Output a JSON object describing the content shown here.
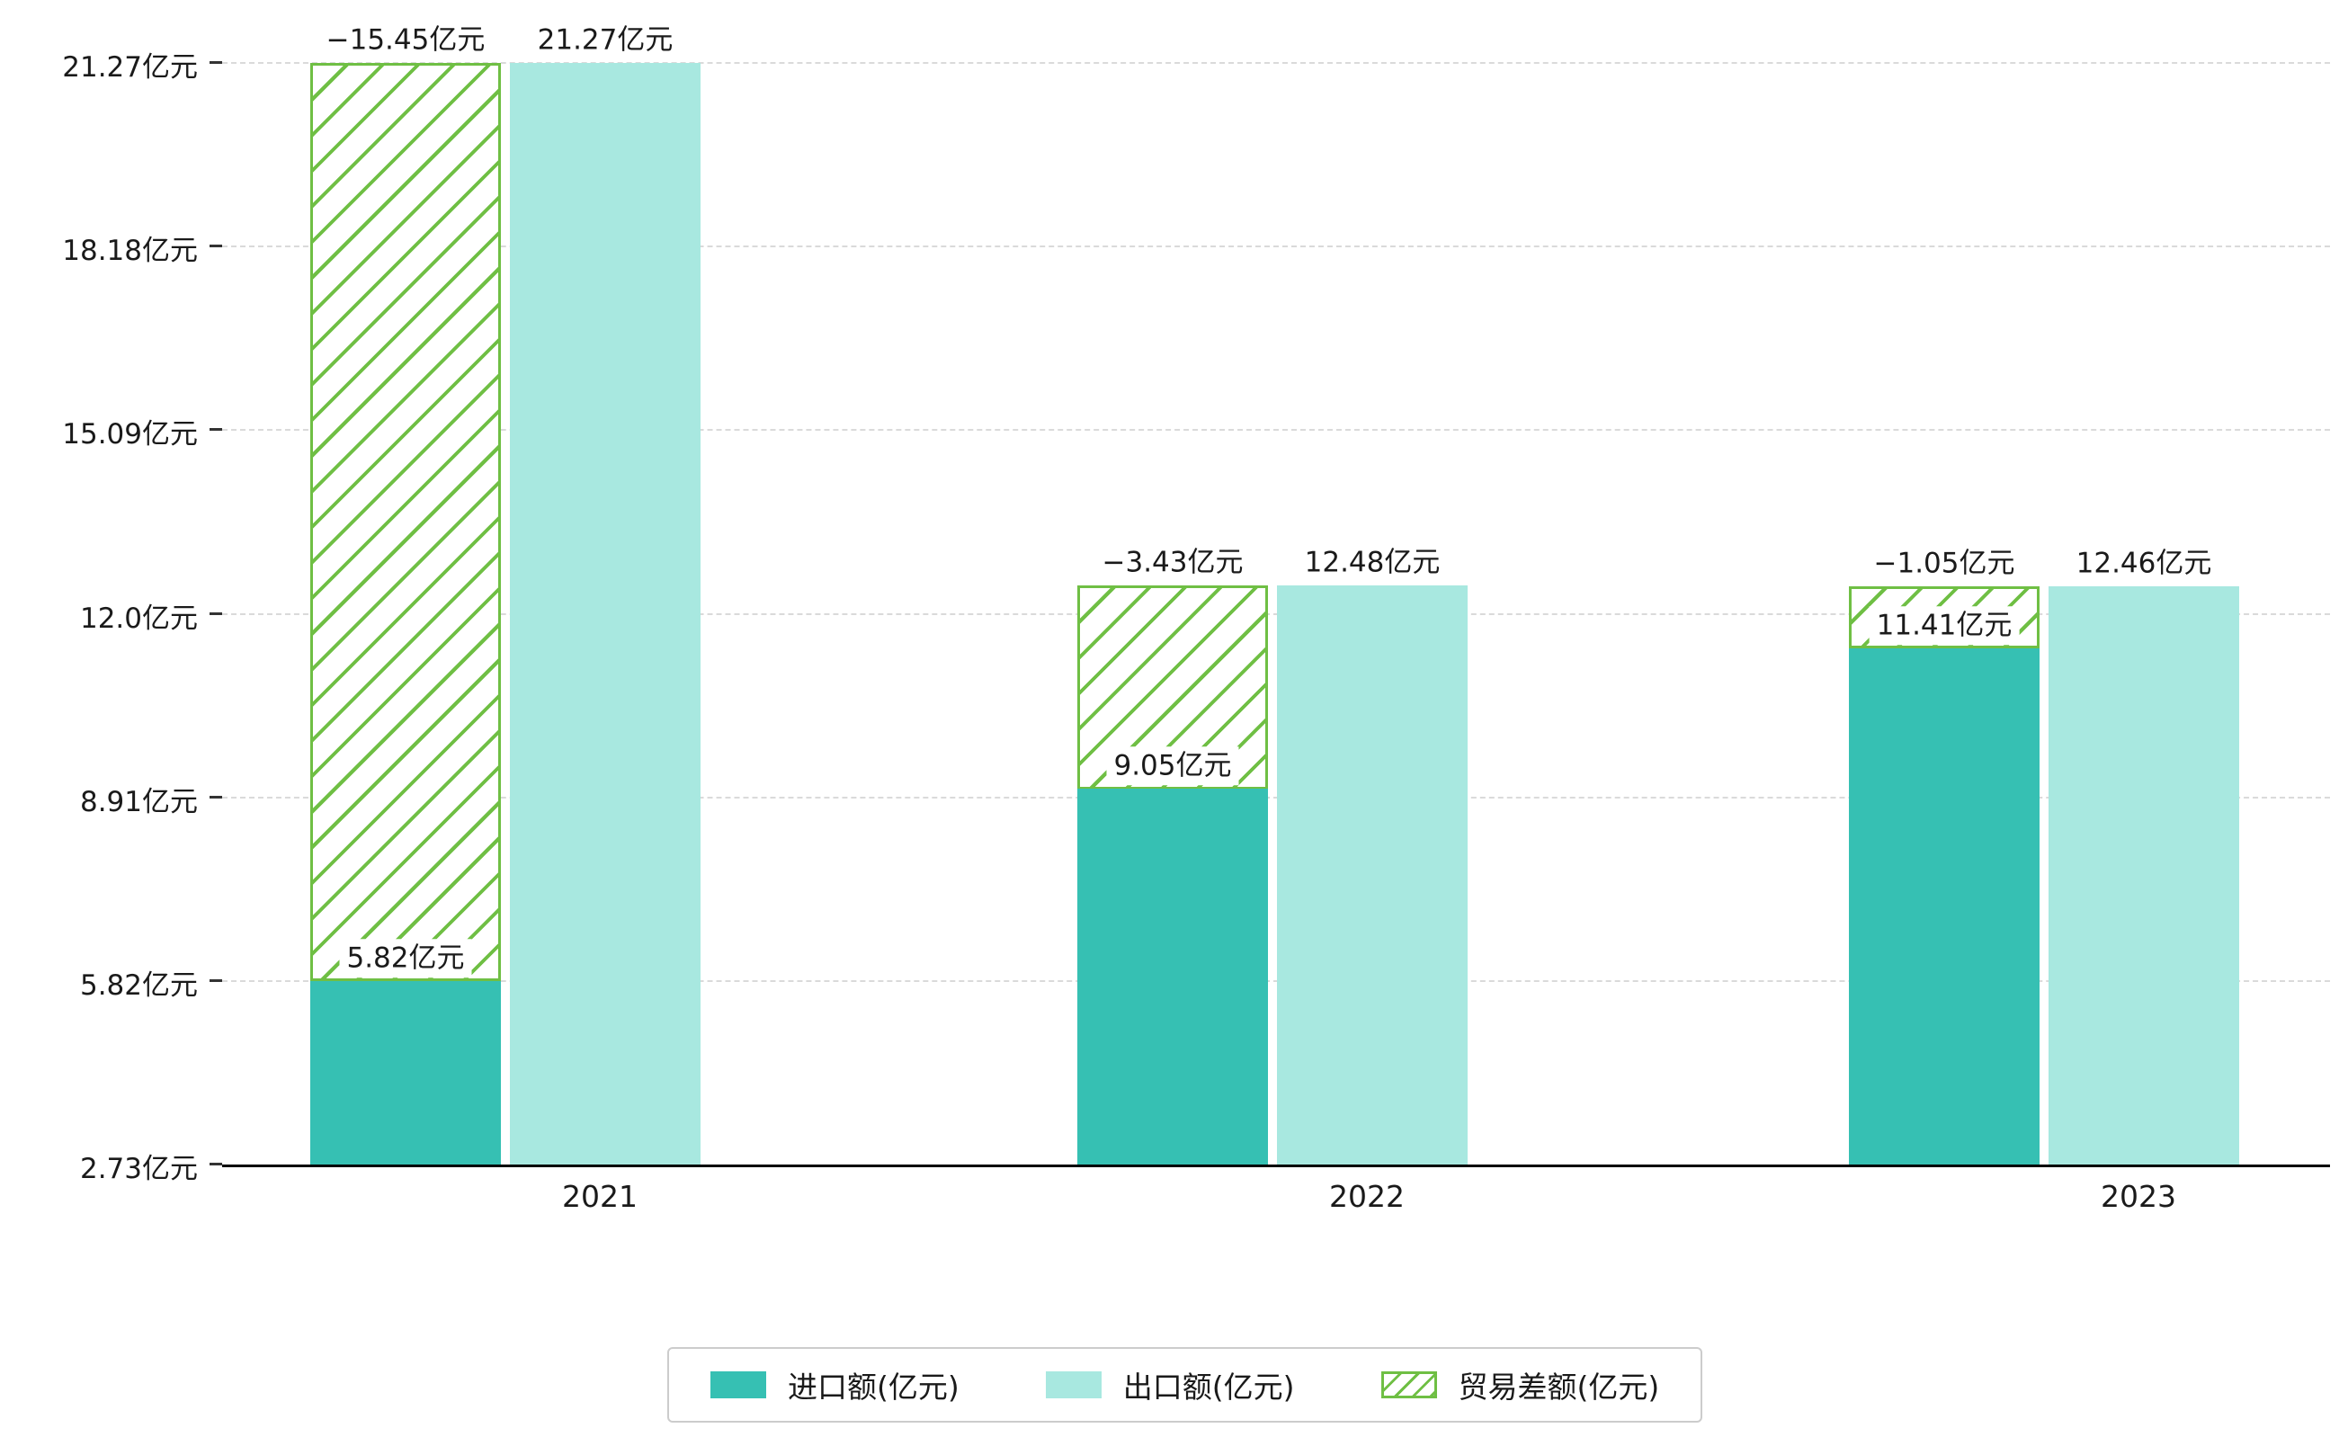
{
  "chart_data": {
    "type": "bar",
    "title": "",
    "categories": [
      "2021",
      "2022",
      "2023"
    ],
    "series": [
      {
        "name": "进口额(亿元)",
        "style": "solid",
        "color": "#36c0b3",
        "values": [
          5.82,
          9.05,
          11.41
        ],
        "labels": [
          "5.82亿元",
          "9.05亿元",
          "11.41亿元"
        ]
      },
      {
        "name": "出口额(亿元)",
        "style": "solid",
        "color": "#a8e8e0",
        "values": [
          21.27,
          12.48,
          12.46
        ],
        "labels": [
          "21.27亿元",
          "12.48亿元",
          "12.46亿元"
        ]
      },
      {
        "name": "贸易差额(亿元)",
        "style": "hatched",
        "color": "#6fbf44",
        "values": [
          -15.45,
          -3.43,
          -1.05
        ],
        "labels": [
          "−15.45亿元",
          "−3.43亿元",
          "−1.05亿元"
        ],
        "stacked_on_top_of": "进口额(亿元)"
      }
    ],
    "y_ticks": [
      {
        "value": 2.73,
        "label": "2.73亿元"
      },
      {
        "value": 5.82,
        "label": "5.82亿元"
      },
      {
        "value": 8.91,
        "label": "8.91亿元"
      },
      {
        "value": 12.0,
        "label": "12.0亿元"
      },
      {
        "value": 15.09,
        "label": "15.09亿元"
      },
      {
        "value": 18.18,
        "label": "18.18亿元"
      },
      {
        "value": 21.27,
        "label": "21.27亿元"
      }
    ],
    "ylim": [
      2.73,
      21.27
    ],
    "xlabel": "",
    "ylabel": "",
    "grid": "horizontal-dashed",
    "legend_position": "bottom"
  },
  "colors": {
    "import": "#36c0b3",
    "export": "#a8e8e0",
    "balance": "#6fbf44",
    "grid": "#dadada",
    "axis": "#000000",
    "text": "#1a1a1a"
  }
}
